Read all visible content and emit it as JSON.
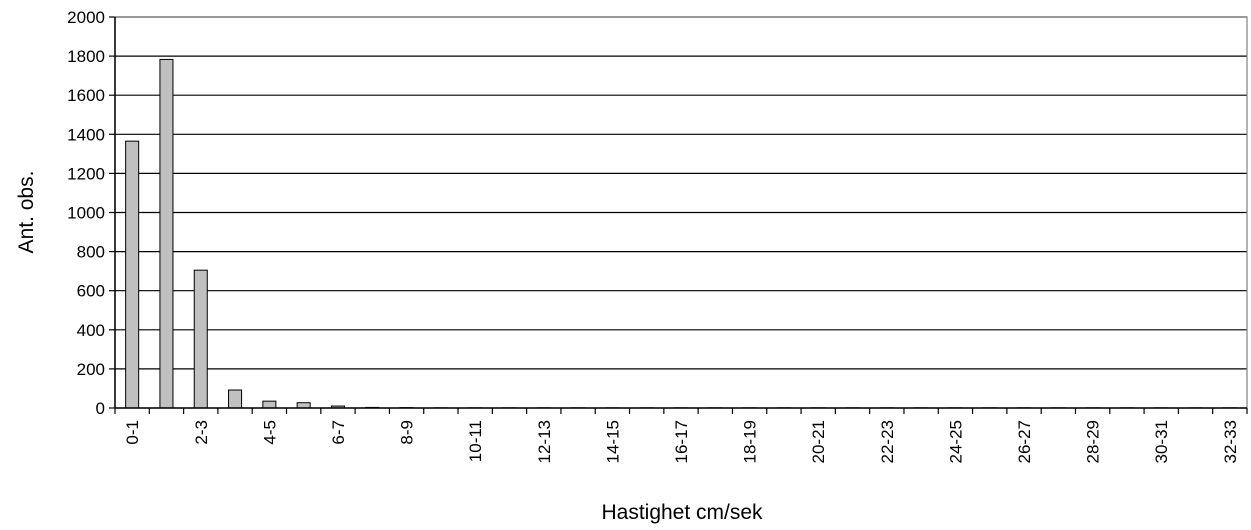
{
  "chart_data": {
    "type": "bar",
    "title": "",
    "xlabel": "Hastighet cm/sek",
    "ylabel": "Ant. obs.",
    "ylim": [
      0,
      2000
    ],
    "yticks": [
      "0",
      "200",
      "400",
      "600",
      "800",
      "1000",
      "1200",
      "1400",
      "1600",
      "1800",
      "2000"
    ],
    "grid": "horizontal",
    "colors": {
      "bar_fill": "#c0c0c0",
      "bar_stroke": "#000000",
      "grid": "#000000",
      "axis": "#000000"
    },
    "categories": [
      "0-1",
      "1-2",
      "2-3",
      "3-4",
      "4-5",
      "5-6",
      "6-7",
      "7-8",
      "8-9",
      "9-10",
      "10-11",
      "11-12",
      "12-13",
      "13-14",
      "14-15",
      "15-16",
      "16-17",
      "17-18",
      "18-19",
      "19-20",
      "20-21",
      "21-22",
      "22-23",
      "23-24",
      "24-25",
      "25-26",
      "26-27",
      "27-28",
      "28-29",
      "29-30",
      "30-31",
      "31-32",
      "32-33"
    ],
    "shown_category_labels": [
      "0-1",
      "2-3",
      "4-5",
      "6-7",
      "8-9",
      "10-11",
      "12-13",
      "14-15",
      "16-17",
      "18-19",
      "20-21",
      "22-23",
      "24-25",
      "26-27",
      "28-29",
      "30-31",
      "32-33"
    ],
    "values": [
      1365,
      1783,
      705,
      92,
      35,
      27,
      10,
      3,
      2,
      1,
      1,
      1,
      1,
      1,
      1,
      1,
      1,
      1,
      1,
      1,
      1,
      1,
      1,
      1,
      1,
      1,
      1,
      1,
      1,
      1,
      1,
      1,
      1
    ]
  }
}
